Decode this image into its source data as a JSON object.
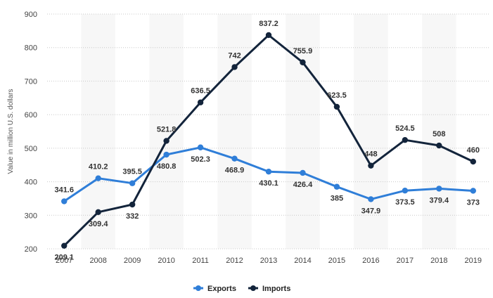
{
  "chart_data": {
    "type": "line",
    "ylabel": "Value in million U.S. dollars",
    "xlabel": "",
    "ylim": [
      200,
      900
    ],
    "yticks": [
      200,
      300,
      400,
      500,
      600,
      700,
      800,
      900
    ],
    "categories": [
      "2007",
      "2008",
      "2009",
      "2010",
      "2011",
      "2012",
      "2013",
      "2014",
      "2015",
      "2016",
      "2017",
      "2018",
      "2019"
    ],
    "grid": "horizontal dotted",
    "alternating_column_bands": true,
    "legend_position": "bottom-center",
    "series": [
      {
        "name": "Exports",
        "color": "#2f7ed8",
        "values": [
          341.6,
          410.2,
          395.5,
          480.8,
          502.3,
          468.9,
          430.1,
          426.4,
          385,
          347.9,
          373.5,
          379.4,
          373
        ],
        "labels": [
          "341.6",
          "410.2",
          "395.5",
          "480.8",
          "502.3",
          "468.9",
          "430.1",
          "426.4",
          "385",
          "347.9",
          "373.5",
          "379.4",
          "373"
        ]
      },
      {
        "name": "Imports",
        "color": "#13243b",
        "values": [
          209.1,
          309.4,
          332,
          521.8,
          636.5,
          742,
          837.2,
          755.9,
          623.5,
          448,
          524.5,
          508,
          460
        ],
        "labels": [
          "209.1",
          "309.4",
          "332",
          "521.8",
          "636.5",
          "742",
          "837.2",
          "755.9",
          "623.5",
          "448",
          "524.5",
          "508",
          "460"
        ]
      }
    ]
  }
}
